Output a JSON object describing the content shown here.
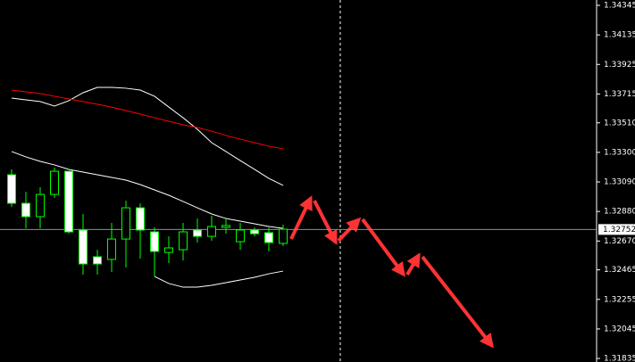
{
  "chart_data": {
    "type": "candlestick",
    "categories": [
      null,
      null,
      null,
      null,
      null,
      null,
      null,
      null,
      null,
      null,
      null,
      null,
      null,
      null,
      null,
      null,
      null,
      null,
      null,
      null
    ],
    "open": [
      1.33141,
      1.32938,
      1.32843,
      1.33001,
      1.33166,
      1.32748,
      1.32558,
      1.32539,
      1.32684,
      1.32906,
      1.32735,
      1.32589,
      1.32608,
      1.32748,
      1.32703,
      1.32767,
      1.32665,
      1.32748,
      1.32729,
      1.32653
    ],
    "high": [
      1.33179,
      1.3302,
      1.33052,
      1.33191,
      1.33166,
      1.32862,
      1.32608,
      1.32799,
      1.32957,
      1.32938,
      1.32767,
      1.32703,
      1.32799,
      1.3283,
      1.32849,
      1.3283,
      1.32799,
      1.32767,
      1.32767,
      1.32786
    ],
    "low": [
      1.32913,
      1.3276,
      1.3276,
      1.32976,
      1.32722,
      1.32431,
      1.32431,
      1.3245,
      1.32482,
      1.32545,
      1.32418,
      1.32513,
      1.32532,
      1.32659,
      1.32672,
      1.32722,
      1.32608,
      1.32703,
      1.32596,
      1.32634
    ],
    "close": [
      1.32938,
      1.32843,
      1.33001,
      1.33166,
      1.32735,
      1.32507,
      1.32507,
      1.32684,
      1.32906,
      1.32748,
      1.32596,
      1.32621,
      1.32735,
      1.32703,
      1.32773,
      1.3278,
      1.32748,
      1.32722,
      1.32659,
      1.32754
    ],
    "up_color": "#000000",
    "down_color": "#ffffff",
    "wick_color": "#00ff00",
    "series": [
      {
        "color": "#ffffff",
        "values": [
          1.33686,
          1.33673,
          1.33661,
          1.33629,
          1.33667,
          1.33724,
          1.33762,
          1.33762,
          1.33756,
          1.33743,
          1.33699,
          1.33622,
          1.33546,
          1.33464,
          1.33369,
          1.33306,
          1.33242,
          1.33179,
          1.33115,
          1.33065
        ]
      },
      {
        "color": "#ffffff",
        "values": [
          1.33306,
          1.33268,
          1.33236,
          1.33211,
          1.33179,
          1.3316,
          1.33141,
          1.33122,
          1.33103,
          1.33071,
          1.33033,
          1.32995,
          1.32951,
          1.32906,
          1.32862,
          1.3283,
          1.32811,
          1.32792,
          1.32773,
          1.3276
        ]
      },
      {
        "color": "#ffffff",
        "values": [
          null,
          null,
          null,
          null,
          null,
          null,
          null,
          null,
          null,
          null,
          1.32418,
          1.32368,
          1.32342,
          1.32342,
          1.32355,
          1.32374,
          1.32393,
          1.32412,
          1.32437,
          1.32456
        ]
      },
      {
        "color": "#ff0000",
        "values": [
          1.33743,
          1.3373,
          1.33718,
          1.33699,
          1.3368,
          1.33661,
          1.33642,
          1.33622,
          1.33597,
          1.33572,
          1.33546,
          1.33521,
          1.33496,
          1.33477,
          1.33451,
          1.3342,
          1.33394,
          1.33369,
          1.33344,
          1.33325
        ]
      }
    ],
    "current_price": 1.32752,
    "ylim": [
      1.3181,
      1.34383
    ],
    "yticks": [
      1.34345,
      1.34135,
      1.33925,
      1.33715,
      {
        "value": 1.3351,
        "label": "1.33510"
      },
      {
        "value": 1.333,
        "label": "1.33300"
      },
      {
        "value": 1.3309,
        "label": "1.33090"
      },
      {
        "value": 1.3288,
        "label": "1.32880"
      },
      {
        "value": 1.3267,
        "label": "1.32670"
      },
      1.32465,
      1.32255,
      1.32045,
      1.31835
    ]
  }
}
